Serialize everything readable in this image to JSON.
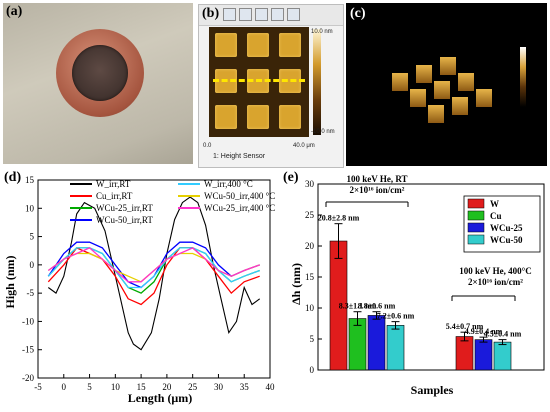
{
  "panels": {
    "a": "(a)",
    "b": "(b)",
    "c": "(c)",
    "d": "(d)",
    "e": "(e)"
  },
  "afm": {
    "caption": "1: Height Sensor",
    "scale_max": "10.0 nm",
    "scale_min": "-10.0 nm",
    "axis_start": "0.0",
    "axis_end": "40.0 μm"
  },
  "colors": {
    "W_rt": "#000000",
    "Cu_rt": "#ff0000",
    "WCu25_rt": "#00aa00",
    "WCu50_rt": "#0000ff",
    "W_400": "#33ccff",
    "WCu50_400": "#e6d000",
    "WCu25_400": "#ff33cc",
    "bar_W": "#e01c1c",
    "bar_Cu": "#1fbf1f",
    "bar_WCu25": "#1a1adb",
    "bar_WCu50": "#33cccc"
  },
  "chart_data": [
    {
      "type": "line",
      "xlabel": "Length (μm)",
      "ylabel": "High (nm)",
      "xlim": [
        -5,
        40
      ],
      "ylim": [
        -20,
        15
      ],
      "xticks": [
        "-5",
        "0",
        "5",
        "10",
        "15",
        "20",
        "25",
        "30",
        "35",
        "40"
      ],
      "yticks": [
        "-20",
        "-15",
        "-10",
        "-5",
        "0",
        "5",
        "10",
        "15"
      ],
      "legend_position": "top",
      "series": [
        {
          "name": "W_irr,RT",
          "color_key": "W_rt",
          "x": [
            -3,
            -1.5,
            0,
            1.5,
            2.5,
            4,
            6,
            8,
            9.5,
            11,
            12.5,
            13.5,
            15,
            17,
            18.5,
            20,
            21.5,
            23,
            24.5,
            26,
            27.5,
            29,
            30.5,
            32,
            33.5,
            35,
            36.5,
            38
          ],
          "y": [
            -4,
            -5,
            -2,
            4,
            9,
            11,
            10,
            6,
            0,
            -6,
            -12,
            -14,
            -15,
            -12,
            -6,
            2,
            8,
            11,
            12,
            11,
            7,
            0,
            -6,
            -12,
            -10,
            -4,
            -7,
            -6
          ]
        },
        {
          "name": "Cu_irr,RT",
          "color_key": "Cu_rt",
          "x": [
            -3,
            0,
            2.5,
            5,
            7.5,
            10,
            12.5,
            15,
            17.5,
            20,
            22.5,
            25,
            27.5,
            30,
            32.5,
            35,
            38
          ],
          "y": [
            -3,
            0,
            3,
            2,
            1,
            -2,
            -6,
            -7,
            -5,
            0,
            3,
            3,
            1,
            -2,
            -5,
            -3,
            -2
          ]
        },
        {
          "name": "WCu-25_irr,RT",
          "color_key": "WCu25_rt",
          "x": [
            -3,
            0,
            2.5,
            5,
            7.5,
            10,
            12.5,
            15,
            17.5,
            20,
            22.5,
            25,
            27.5,
            30,
            32.5,
            35,
            38
          ],
          "y": [
            -2,
            1,
            3,
            3,
            2,
            -1,
            -4,
            -5,
            -3,
            1,
            3,
            3,
            2,
            -1,
            -3,
            -2,
            -1
          ]
        },
        {
          "name": "WCu-50_irr,RT",
          "color_key": "WCu50_rt",
          "x": [
            -3,
            0,
            2.5,
            5,
            7.5,
            10,
            12.5,
            15,
            17.5,
            20,
            22.5,
            25,
            27.5,
            30,
            32.5,
            35,
            38
          ],
          "y": [
            -2,
            2,
            4,
            4,
            3,
            0,
            -3,
            -4,
            -2,
            2,
            4,
            4,
            3,
            0,
            -2,
            -1,
            0
          ]
        },
        {
          "name": "W_irr,400 °C",
          "color_key": "W_400",
          "x": [
            -3,
            0,
            2.5,
            5,
            7.5,
            10,
            12.5,
            15,
            17.5,
            20,
            22.5,
            25,
            27.5,
            30,
            32.5,
            35,
            38
          ],
          "y": [
            -2,
            1,
            3,
            3,
            2,
            -1,
            -4,
            -4,
            -2,
            1,
            3,
            3,
            2,
            -1,
            -3,
            -2,
            -1
          ]
        },
        {
          "name": "WCu-50_irr,400 °C",
          "color_key": "WCu50_400",
          "x": [
            -3,
            0,
            2.5,
            5,
            7.5,
            10,
            12.5,
            15,
            17.5,
            20,
            22.5,
            25,
            27.5,
            30,
            32.5,
            35,
            38
          ],
          "y": [
            -1,
            1,
            2,
            2,
            1,
            -1,
            -2,
            -3,
            -1,
            1,
            2,
            2,
            1,
            -1,
            -2,
            -1,
            0
          ]
        },
        {
          "name": "WCu-25_irr,400 °C",
          "color_key": "WCu25_400",
          "x": [
            -3,
            0,
            2.5,
            5,
            7.5,
            10,
            12.5,
            15,
            17.5,
            20,
            22.5,
            25,
            27.5,
            30,
            32.5,
            35,
            38
          ],
          "y": [
            -1,
            1,
            2,
            3,
            1,
            -1,
            -3,
            -3,
            -1,
            1,
            2,
            3,
            1,
            -1,
            -2,
            -1,
            0
          ]
        }
      ]
    },
    {
      "type": "bar",
      "xlabel": "Samples",
      "ylabel": "Δh (nm)",
      "ylim": [
        0,
        30
      ],
      "yticks": [
        "0",
        "5",
        "10",
        "15",
        "20",
        "25",
        "30"
      ],
      "legend_position": "top-right",
      "groups": [
        {
          "condition_line1": "100 keV He, RT",
          "condition_line2": "2×10¹⁶ ion/cm²"
        },
        {
          "condition_line1": "100 keV He, 400°C",
          "condition_line2": "2×10¹⁶ ion/cm²"
        }
      ],
      "series": [
        {
          "name": "W",
          "color_key": "bar_W",
          "values": [
            20.8,
            5.4
          ],
          "errors": [
            2.8,
            0.7
          ],
          "labels": [
            "20.8±2.8 nm",
            "5.4±0.7 nm"
          ]
        },
        {
          "name": "Cu",
          "color_key": "bar_Cu",
          "values": [
            8.3,
            null
          ],
          "errors": [
            1.1,
            null
          ],
          "labels": [
            "8.3±1.1 nm",
            ""
          ]
        },
        {
          "name": "WCu-25",
          "color_key": "bar_WCu25",
          "values": [
            8.8,
            4.9
          ],
          "errors": [
            0.6,
            0.4
          ],
          "labels": [
            "8.8±0.6 nm",
            "4.9±0.4 nm"
          ]
        },
        {
          "name": "WCu-50",
          "color_key": "bar_WCu50",
          "values": [
            7.2,
            4.5
          ],
          "errors": [
            0.6,
            0.4
          ],
          "labels": [
            "7.2±0.6 nm",
            "4.5±0.4 nm"
          ]
        }
      ]
    }
  ]
}
